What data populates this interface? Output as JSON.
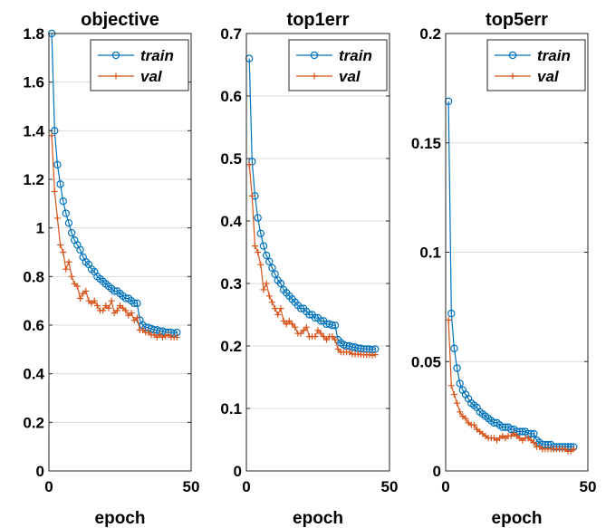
{
  "colors": {
    "train": "#0072BD",
    "val": "#D95319"
  },
  "chart_data": [
    {
      "type": "line",
      "title": "objective",
      "xlabel": "epoch",
      "xlim": [
        0,
        50
      ],
      "ylim": [
        0,
        1.8
      ],
      "xticks": [
        0,
        50
      ],
      "xtick_labels": [
        "0",
        "50"
      ],
      "yticks": [
        0,
        0.2,
        0.4,
        0.6,
        0.8,
        1.0,
        1.2,
        1.4,
        1.6,
        1.8
      ],
      "ytick_labels": [
        "0",
        "0.2",
        "0.4",
        "0.6",
        "0.8",
        "1",
        "1.2",
        "1.4",
        "1.6",
        "1.8"
      ],
      "grid": true,
      "legend": "top-right",
      "series": [
        {
          "name": "train",
          "marker": "circle",
          "x": [
            1,
            2,
            3,
            4,
            5,
            6,
            7,
            8,
            9,
            10,
            11,
            12,
            13,
            14,
            15,
            16,
            17,
            18,
            19,
            20,
            21,
            22,
            23,
            24,
            25,
            26,
            27,
            28,
            29,
            30,
            31,
            32,
            33,
            34,
            35,
            36,
            37,
            38,
            39,
            40,
            41,
            42,
            43,
            44,
            45
          ],
          "values": [
            1.8,
            1.4,
            1.26,
            1.18,
            1.11,
            1.06,
            1.02,
            0.98,
            0.95,
            0.93,
            0.91,
            0.88,
            0.86,
            0.85,
            0.83,
            0.82,
            0.8,
            0.79,
            0.78,
            0.77,
            0.76,
            0.75,
            0.74,
            0.74,
            0.73,
            0.72,
            0.71,
            0.71,
            0.7,
            0.69,
            0.69,
            0.62,
            0.6,
            0.59,
            0.59,
            0.585,
            0.58,
            0.58,
            0.575,
            0.575,
            0.57,
            0.57,
            0.57,
            0.565,
            0.57
          ]
        },
        {
          "name": "val",
          "marker": "plus",
          "x": [
            1,
            2,
            3,
            4,
            5,
            6,
            7,
            8,
            9,
            10,
            11,
            12,
            13,
            14,
            15,
            16,
            17,
            18,
            19,
            20,
            21,
            22,
            23,
            24,
            25,
            26,
            27,
            28,
            29,
            30,
            31,
            32,
            33,
            34,
            35,
            36,
            37,
            38,
            39,
            40,
            41,
            42,
            43,
            44,
            45
          ],
          "values": [
            1.38,
            1.15,
            1.04,
            0.93,
            0.9,
            0.83,
            0.86,
            0.8,
            0.77,
            0.76,
            0.71,
            0.73,
            0.74,
            0.7,
            0.69,
            0.7,
            0.68,
            0.66,
            0.66,
            0.68,
            0.67,
            0.7,
            0.65,
            0.66,
            0.68,
            0.67,
            0.66,
            0.64,
            0.65,
            0.62,
            0.63,
            0.58,
            0.58,
            0.57,
            0.57,
            0.56,
            0.56,
            0.55,
            0.56,
            0.55,
            0.555,
            0.56,
            0.55,
            0.55,
            0.55
          ]
        }
      ]
    },
    {
      "type": "line",
      "title": "top1err",
      "xlabel": "epoch",
      "xlim": [
        0,
        50
      ],
      "ylim": [
        0,
        0.7
      ],
      "xticks": [
        0,
        50
      ],
      "xtick_labels": [
        "0",
        "50"
      ],
      "yticks": [
        0,
        0.1,
        0.2,
        0.3,
        0.4,
        0.5,
        0.6,
        0.7
      ],
      "ytick_labels": [
        "0",
        "0.1",
        "0.2",
        "0.3",
        "0.4",
        "0.5",
        "0.6",
        "0.7"
      ],
      "grid": true,
      "legend": "top-right",
      "series": [
        {
          "name": "train",
          "marker": "circle",
          "x": [
            1,
            2,
            3,
            4,
            5,
            6,
            7,
            8,
            9,
            10,
            11,
            12,
            13,
            14,
            15,
            16,
            17,
            18,
            19,
            20,
            21,
            22,
            23,
            24,
            25,
            26,
            27,
            28,
            29,
            30,
            31,
            32,
            33,
            34,
            35,
            36,
            37,
            38,
            39,
            40,
            41,
            42,
            43,
            44,
            45
          ],
          "values": [
            0.66,
            0.495,
            0.44,
            0.405,
            0.38,
            0.36,
            0.345,
            0.335,
            0.325,
            0.315,
            0.305,
            0.3,
            0.29,
            0.285,
            0.28,
            0.275,
            0.27,
            0.265,
            0.26,
            0.26,
            0.255,
            0.25,
            0.25,
            0.245,
            0.245,
            0.24,
            0.24,
            0.235,
            0.235,
            0.233,
            0.233,
            0.21,
            0.205,
            0.202,
            0.2,
            0.2,
            0.198,
            0.198,
            0.196,
            0.196,
            0.195,
            0.195,
            0.195,
            0.194,
            0.195
          ]
        },
        {
          "name": "val",
          "marker": "plus",
          "x": [
            1,
            2,
            3,
            4,
            5,
            6,
            7,
            8,
            9,
            10,
            11,
            12,
            13,
            14,
            15,
            16,
            17,
            18,
            19,
            20,
            21,
            22,
            23,
            24,
            25,
            26,
            27,
            28,
            29,
            30,
            31,
            32,
            33,
            34,
            35,
            36,
            37,
            38,
            39,
            40,
            41,
            42,
            43,
            44,
            45
          ],
          "values": [
            0.49,
            0.44,
            0.36,
            0.35,
            0.33,
            0.29,
            0.3,
            0.28,
            0.27,
            0.26,
            0.25,
            0.26,
            0.24,
            0.235,
            0.24,
            0.235,
            0.23,
            0.22,
            0.22,
            0.225,
            0.23,
            0.215,
            0.215,
            0.215,
            0.225,
            0.22,
            0.215,
            0.21,
            0.215,
            0.215,
            0.21,
            0.195,
            0.19,
            0.19,
            0.19,
            0.19,
            0.187,
            0.187,
            0.187,
            0.186,
            0.186,
            0.186,
            0.186,
            0.185,
            0.186
          ]
        }
      ]
    },
    {
      "type": "line",
      "title": "top5err",
      "xlabel": "epoch",
      "xlim": [
        0,
        50
      ],
      "ylim": [
        0,
        0.2
      ],
      "xticks": [
        0,
        50
      ],
      "xtick_labels": [
        "0",
        "50"
      ],
      "yticks": [
        0,
        0.05,
        0.1,
        0.15,
        0.2
      ],
      "ytick_labels": [
        "0",
        "0.05",
        "0.1",
        "0.15",
        "0.2"
      ],
      "grid": true,
      "legend": "top-right",
      "series": [
        {
          "name": "train",
          "marker": "circle",
          "x": [
            1,
            2,
            3,
            4,
            5,
            6,
            7,
            8,
            9,
            10,
            11,
            12,
            13,
            14,
            15,
            16,
            17,
            18,
            19,
            20,
            21,
            22,
            23,
            24,
            25,
            26,
            27,
            28,
            29,
            30,
            31,
            32,
            33,
            34,
            35,
            36,
            37,
            38,
            39,
            40,
            41,
            42,
            43,
            44,
            45
          ],
          "values": [
            0.169,
            0.072,
            0.056,
            0.047,
            0.04,
            0.037,
            0.035,
            0.033,
            0.031,
            0.03,
            0.029,
            0.027,
            0.026,
            0.025,
            0.024,
            0.023,
            0.022,
            0.022,
            0.021,
            0.02,
            0.02,
            0.02,
            0.019,
            0.019,
            0.018,
            0.018,
            0.018,
            0.018,
            0.017,
            0.017,
            0.017,
            0.014,
            0.013,
            0.012,
            0.012,
            0.012,
            0.012,
            0.011,
            0.011,
            0.011,
            0.011,
            0.011,
            0.011,
            0.011,
            0.011
          ]
        },
        {
          "name": "val",
          "marker": "plus",
          "x": [
            1,
            2,
            3,
            4,
            5,
            6,
            7,
            8,
            9,
            10,
            11,
            12,
            13,
            14,
            15,
            16,
            17,
            18,
            19,
            20,
            21,
            22,
            23,
            24,
            25,
            26,
            27,
            28,
            29,
            30,
            31,
            32,
            33,
            34,
            35,
            36,
            37,
            38,
            39,
            40,
            41,
            42,
            43,
            44,
            45
          ],
          "values": [
            0.069,
            0.039,
            0.035,
            0.031,
            0.027,
            0.025,
            0.024,
            0.022,
            0.021,
            0.021,
            0.019,
            0.018,
            0.017,
            0.016,
            0.015,
            0.015,
            0.015,
            0.014,
            0.015,
            0.016,
            0.015,
            0.016,
            0.016,
            0.017,
            0.016,
            0.015,
            0.014,
            0.015,
            0.015,
            0.014,
            0.013,
            0.011,
            0.011,
            0.01,
            0.01,
            0.01,
            0.01,
            0.01,
            0.01,
            0.01,
            0.01,
            0.01,
            0.009,
            0.009,
            0.01
          ]
        }
      ]
    }
  ]
}
